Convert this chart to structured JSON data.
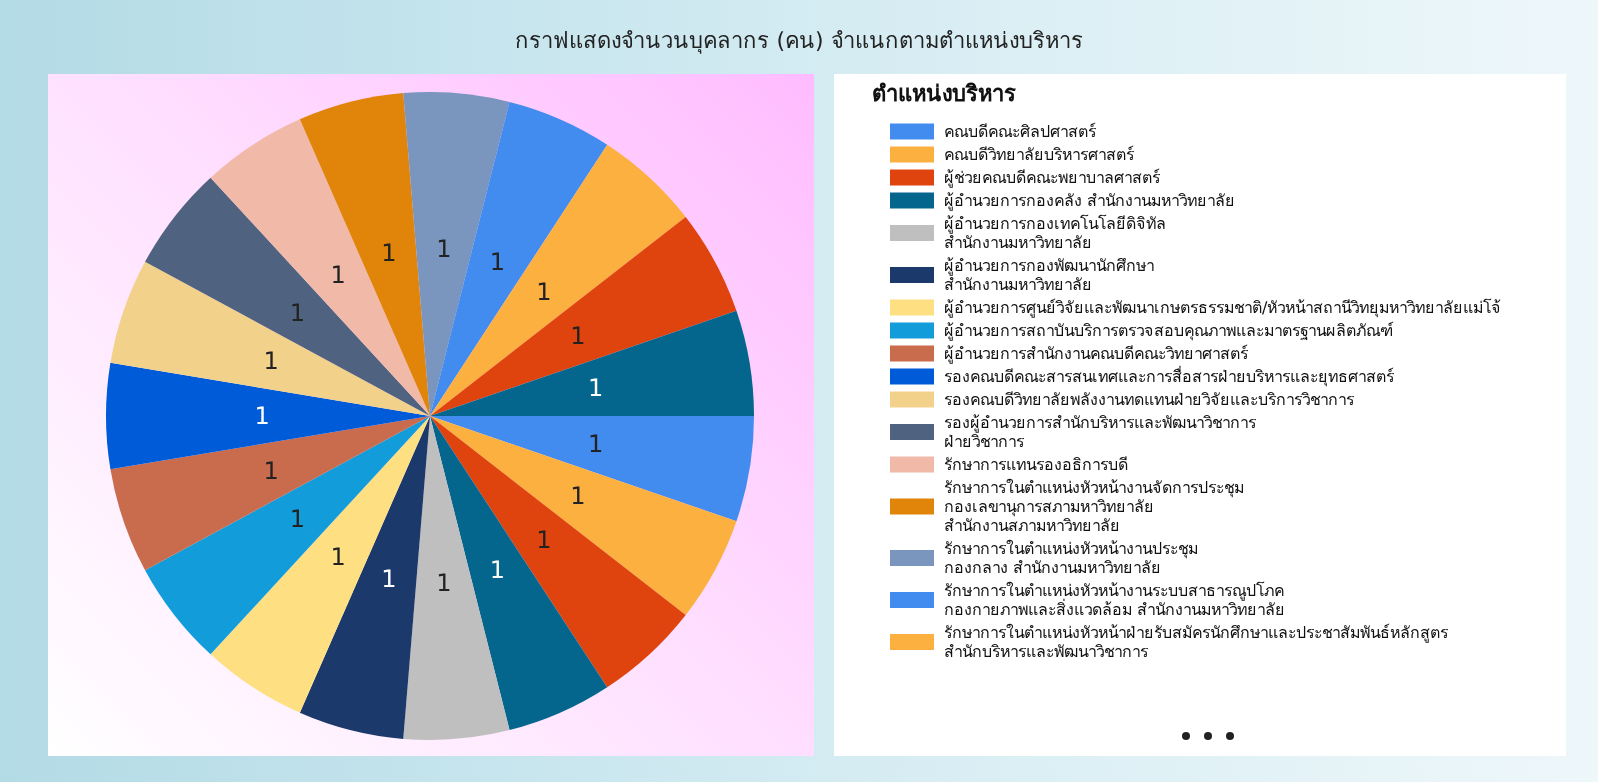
{
  "chart_data": {
    "type": "pie",
    "title": "กราฟแสดงจำนวนบุคลากร (คน) จำแนกตามตำแหน่งบริหาร",
    "legend_title": "ตำแหน่งบริหาร",
    "legend": "right",
    "data_labels": true,
    "categories": [
      "คณบดีคณะศิลปศาสตร์",
      "คณบดีวิทยาลัยบริหารศาสตร์",
      "ผู้ช่วยคณบดีคณะพยาบาลศาสตร์",
      "ผู้อำนวยการกองคลัง สำนักงานมหาวิทยาลัย",
      "ผู้อำนวยการกองเทคโนโลยีดิจิทัล\nสำนักงานมหาวิทยาลัย",
      "ผู้อำนวยการกองพัฒนานักศึกษา\nสำนักงานมหาวิทยาลัย",
      "ผู้อำนวยการศูนย์วิจัยและพัฒนาเกษตรธรรมชาติ/หัวหน้าสถานีวิทยุมหาวิทยาลัยแม่โจ้",
      "ผู้อำนวยการสถาบันบริการตรวจสอบคุณภาพและมาตรฐานผลิตภัณฑ์",
      "ผู้อำนวยการสำนักงานคณบดีคณะวิทยาศาสตร์",
      "รองคณบดีคณะสารสนเทศและการสื่อสารฝ่ายบริหารและยุทธศาสตร์",
      "รองคณบดีวิทยาลัยพลังงานทดแทนฝ่ายวิจัยและบริการวิชาการ",
      "รองผู้อำนวยการสำนักบริหารและพัฒนาวิชาการ\nฝ่ายวิชาการ",
      "รักษาการแทนรองอธิการบดี",
      "รักษาการในตำแหน่งหัวหน้างานจัดการประชุม\nกองเลขานุการสภามหาวิทยาลัย\nสำนักงานสภามหาวิทยาลัย",
      "รักษาการในตำแหน่งหัวหน้างานประชุม\nกองกลาง สำนักงานมหาวิทยาลัย",
      "รักษาการในตำแหน่งหัวหน้างานระบบสาธารณูปโภค\nกองกายภาพและสิ่งแวดล้อม สำนักงานมหาวิทยาลัย",
      "รักษาการในตำแหน่งหัวหน้าฝ่ายรับสมัครนักศึกษาและประชาสัมพันธ์หลักสูตร\nสำนักบริหารและพัฒนาวิชาการ",
      null,
      null
    ],
    "values": [
      1,
      1,
      1,
      1,
      1,
      1,
      1,
      1,
      1,
      1,
      1,
      1,
      1,
      1,
      1,
      1,
      1,
      1,
      1
    ],
    "colors": [
      "#428bef",
      "#fbb040",
      "#e0440e",
      "#05668d",
      "#bfbfbf",
      "#1b3a6b",
      "#fee083",
      "#139cda",
      "#c96b4d",
      "#005bd9",
      "#f2d18b",
      "#4f627f",
      "#f0b9a8",
      "#e0850a",
      "#7a96bf",
      "#428bef",
      "#fbb040",
      "#e0440e",
      "#05668d"
    ]
  }
}
